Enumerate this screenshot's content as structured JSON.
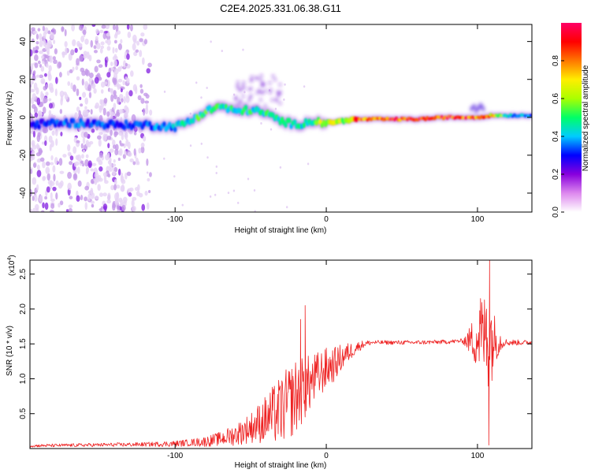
{
  "title": "C2E4.2025.331.06.38.G11",
  "chart_data": [
    {
      "type": "heatmap",
      "name": "spectrogram",
      "xlabel": "Height of straight line (km)",
      "ylabel": "Frequency (Hz)",
      "xlim": [
        -196,
        136
      ],
      "ylim": [
        -50,
        49
      ],
      "xticks": [
        -100,
        0,
        100
      ],
      "yticks": [
        -40,
        -20,
        0,
        20,
        40
      ],
      "colorbar": {
        "label": "Normalized spectral amplitude",
        "range": [
          0,
          1
        ],
        "ticks": [
          "0.0",
          "0.2",
          "0.4",
          "0.6",
          "0.8"
        ],
        "tick_values": [
          0,
          0.2,
          0.4,
          0.6,
          0.8
        ],
        "colors": [
          "#ffffff",
          "#dd88ee",
          "#8800dd",
          "#0000ff",
          "#00ccff",
          "#00ff66",
          "#aaff00",
          "#ffee00",
          "#ff7700",
          "#ff0000",
          "#ff0066"
        ]
      },
      "ridge": {
        "x": [
          -196,
          -180,
          -160,
          -140,
          -120,
          -100,
          -90,
          -80,
          -70,
          -60,
          -50,
          -40,
          -30,
          -20,
          -10,
          0,
          10,
          20,
          40,
          60,
          80,
          100,
          110,
          120,
          136
        ],
        "freq": [
          -4,
          -3,
          -3,
          -4,
          -4,
          -5,
          -2,
          3,
          6,
          3,
          4,
          2,
          -2,
          -4,
          -2,
          -3,
          -2,
          -1,
          -1,
          -1,
          0,
          0,
          1,
          1,
          1
        ],
        "amplitude": [
          0.3,
          0.35,
          0.35,
          0.35,
          0.35,
          0.4,
          0.5,
          0.55,
          0.5,
          0.5,
          0.5,
          0.5,
          0.5,
          0.45,
          0.55,
          0.7,
          0.65,
          0.85,
          0.95,
          0.95,
          0.95,
          0.9,
          0.75,
          0.45,
          0.35
        ]
      }
    },
    {
      "type": "line",
      "name": "snr",
      "xlabel": "Height of straight line (km)",
      "ylabel": "SNR (10 * v/v)",
      "y_multiplier_label": "(x10",
      "y_multiplier_exp": "4",
      "y_multiplier_close": ")",
      "xlim": [
        -196,
        136
      ],
      "ylim": [
        0,
        2.7
      ],
      "xticks": [
        -100,
        0,
        100
      ],
      "yticks": [
        0.5,
        1.0,
        1.5,
        2.0,
        2.5
      ],
      "ytick_labels": [
        "0.5",
        "1.0",
        "1.5",
        "2.0",
        "2.5"
      ],
      "color": "#ee2222",
      "envelope": {
        "x": [
          -196,
          -160,
          -120,
          -100,
          -80,
          -70,
          -60,
          -50,
          -40,
          -30,
          -25,
          -20,
          -15,
          -10,
          -5,
          0,
          5,
          10,
          15,
          20,
          25,
          30,
          40,
          60,
          80,
          95,
          100,
          104,
          108,
          112,
          120,
          136
        ],
        "y": [
          0.04,
          0.05,
          0.06,
          0.07,
          0.1,
          0.14,
          0.2,
          0.3,
          0.42,
          0.55,
          0.65,
          0.75,
          0.85,
          0.95,
          1.05,
          1.15,
          1.2,
          1.3,
          1.38,
          1.45,
          1.5,
          1.52,
          1.52,
          1.52,
          1.53,
          1.55,
          1.6,
          1.62,
          1.6,
          1.55,
          1.52,
          1.52
        ]
      },
      "noise": {
        "x": [
          -196,
          -120,
          -90,
          -70,
          -50,
          -40,
          -30,
          -20,
          -10,
          0,
          10,
          20,
          30,
          90,
          95,
          100,
          104,
          108,
          112,
          118,
          136
        ],
        "amp": [
          0.02,
          0.03,
          0.05,
          0.1,
          0.22,
          0.35,
          0.5,
          0.55,
          0.4,
          0.3,
          0.2,
          0.08,
          0.03,
          0.03,
          0.2,
          0.5,
          0.6,
          0.8,
          0.3,
          0.05,
          0.03
        ]
      },
      "spikes": [
        {
          "x": -14,
          "y": 2.05
        },
        {
          "x": -17,
          "y": 1.85
        },
        {
          "x": 102,
          "y": 2.15
        },
        {
          "x": 106,
          "y": 2.0
        },
        {
          "x": 108,
          "y": 2.7
        },
        {
          "x": 107.5,
          "y": 0.05
        }
      ]
    }
  ]
}
